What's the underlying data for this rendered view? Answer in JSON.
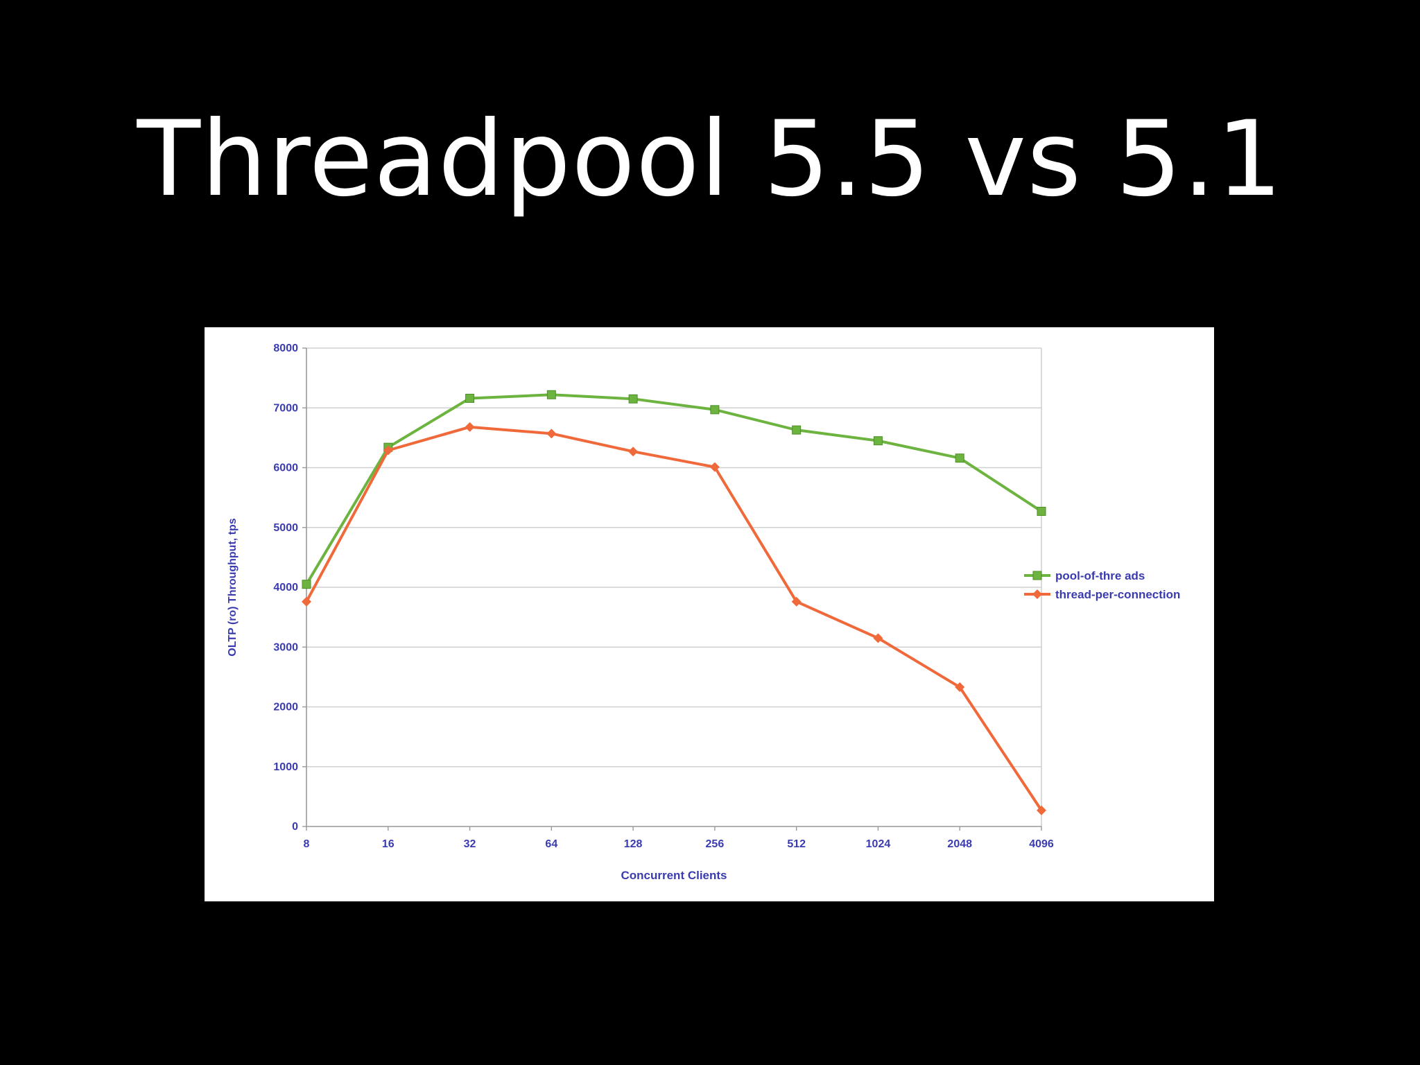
{
  "slide": {
    "title": "Threadpool 5.5 vs 5.1"
  },
  "colors": {
    "background": "#000000",
    "title_text": "#ffffff",
    "panel": "#ffffff",
    "axis_text": "#3b3bb0",
    "grid": "#d0d0d0",
    "pool_of_threads": "#6cb33f",
    "thread_per_connection": "#f0693a"
  },
  "chart_data": {
    "type": "line",
    "title": "",
    "xlabel": "Concurrent Clients",
    "ylabel": "OLTP (ro) Throughput, tps",
    "categories": [
      "8",
      "16",
      "32",
      "64",
      "128",
      "256",
      "512",
      "1024",
      "2048",
      "4096"
    ],
    "ylim": [
      0,
      8000
    ],
    "yticks": [
      0,
      1000,
      2000,
      3000,
      4000,
      5000,
      6000,
      7000,
      8000
    ],
    "grid": true,
    "legend_position": "right",
    "series": [
      {
        "name": "pool-of-thre ads",
        "color": "#6cb33f",
        "marker": "square",
        "values": [
          4050,
          6340,
          7160,
          7220,
          7150,
          6970,
          6630,
          6450,
          6160,
          5270
        ]
      },
      {
        "name": "thread-per-connection",
        "color": "#f0693a",
        "marker": "diamond",
        "values": [
          3760,
          6290,
          6680,
          6570,
          6270,
          6010,
          3760,
          3150,
          2330,
          270
        ]
      }
    ]
  }
}
